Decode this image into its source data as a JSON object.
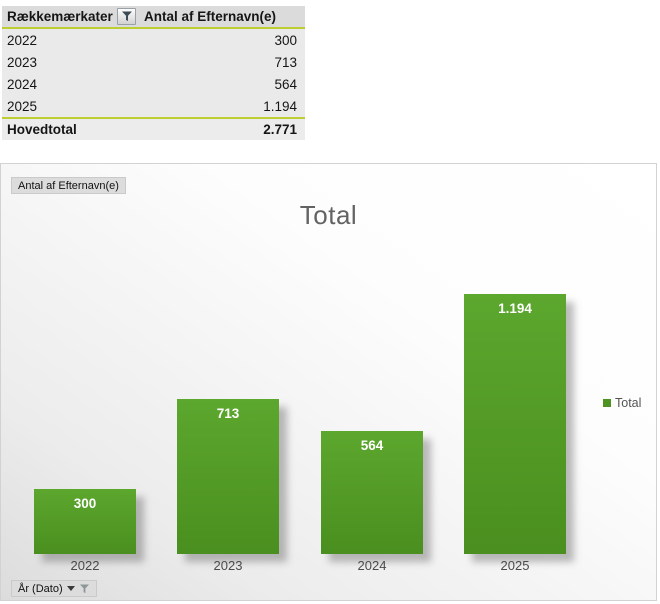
{
  "pivot_table": {
    "header": {
      "row_labels": "Rækkemærkater",
      "values": "Antal af Efternavn(e)"
    },
    "rows": [
      {
        "label": "2022",
        "value": "300"
      },
      {
        "label": "2023",
        "value": "713"
      },
      {
        "label": "2024",
        "value": "564"
      },
      {
        "label": "2025",
        "value": "1.194"
      }
    ],
    "grand_total": {
      "label": "Hovedtotal",
      "value": "2.771"
    }
  },
  "chart": {
    "value_field_button": "Antal af Efternavn(e)",
    "axis_field_button": "År (Dato)"
  },
  "chart_data": {
    "type": "bar",
    "title": "Total",
    "categories": [
      "2022",
      "2023",
      "2024",
      "2025"
    ],
    "series": [
      {
        "name": "Total",
        "values": [
          300,
          713,
          564,
          1194
        ]
      }
    ],
    "data_labels": [
      "300",
      "713",
      "564",
      "1.194"
    ],
    "xlabel": "",
    "ylabel": "",
    "ylim": [
      0,
      1194
    ],
    "grid": false,
    "legend_position": "right",
    "bar_color": "#4E9221"
  },
  "colors": {
    "bar_gradient_top": "#5CA72E",
    "bar_gradient_bottom": "#4A8F1F",
    "accent_line": "#BCCE31",
    "legend_swatch": "#4E9221",
    "title_text": "#636363",
    "header_bg": "#DBDBDB",
    "row_bg": "#EAEAEA"
  },
  "icons": {
    "pivot_filter": "funnel-icon",
    "axis_caret": "chevron-down-icon",
    "axis_funnel": "funnel-icon"
  }
}
